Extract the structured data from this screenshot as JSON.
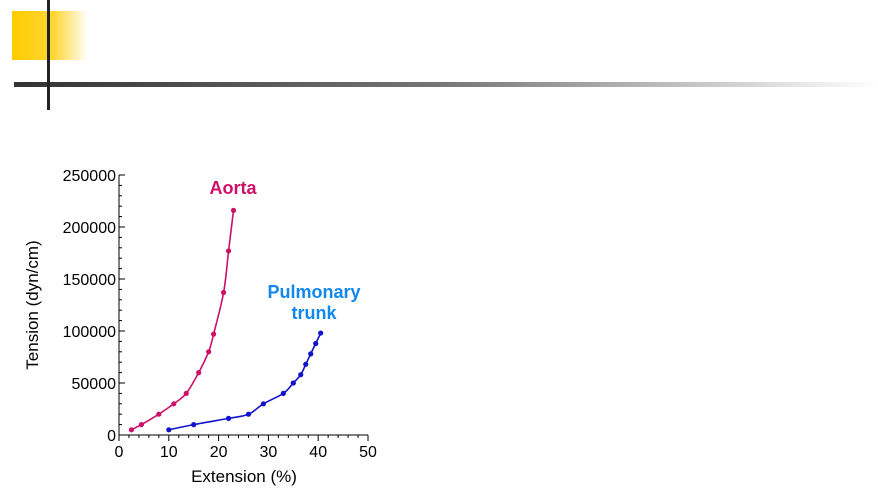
{
  "chart_data": {
    "type": "line",
    "title": "",
    "xlabel": "Extension (%)",
    "ylabel": "Tension (dyn/cm)",
    "xlim": [
      0,
      50
    ],
    "ylim": [
      0,
      250000
    ],
    "x_ticks": [
      0,
      10,
      20,
      30,
      40,
      50
    ],
    "y_ticks": [
      0,
      50000,
      100000,
      150000,
      200000,
      250000
    ],
    "x_tick_labels": [
      "0",
      "10",
      "20",
      "30",
      "40",
      "50"
    ],
    "y_tick_labels": [
      "0",
      "50000",
      "100000",
      "150000",
      "200000",
      "250000"
    ],
    "grid": false,
    "series": [
      {
        "name": "Aorta",
        "name_lines": [
          "Aorta"
        ],
        "color": "#cc1166",
        "points": [
          [
            2.5,
            5000
          ],
          [
            4.5,
            10000
          ],
          [
            8,
            20000
          ],
          [
            11,
            30000
          ],
          [
            13.5,
            40000
          ],
          [
            16,
            60000
          ],
          [
            18,
            80000
          ],
          [
            19,
            97000
          ],
          [
            21,
            137000
          ],
          [
            22,
            177000
          ],
          [
            23,
            216000
          ]
        ]
      },
      {
        "name": "Pulmonary trunk",
        "name_lines": [
          "Pulmonary",
          "trunk"
        ],
        "color": "#1111cc",
        "label_color": "#1188ee",
        "points": [
          [
            10,
            5000
          ],
          [
            15,
            10000
          ],
          [
            22,
            16000
          ],
          [
            26,
            20000
          ],
          [
            29,
            30000
          ],
          [
            33,
            40000
          ],
          [
            35,
            50000
          ],
          [
            36.5,
            58000
          ],
          [
            37.5,
            68000
          ],
          [
            38.5,
            78000
          ],
          [
            39.5,
            88000
          ],
          [
            40.5,
            98000
          ]
        ]
      }
    ]
  }
}
